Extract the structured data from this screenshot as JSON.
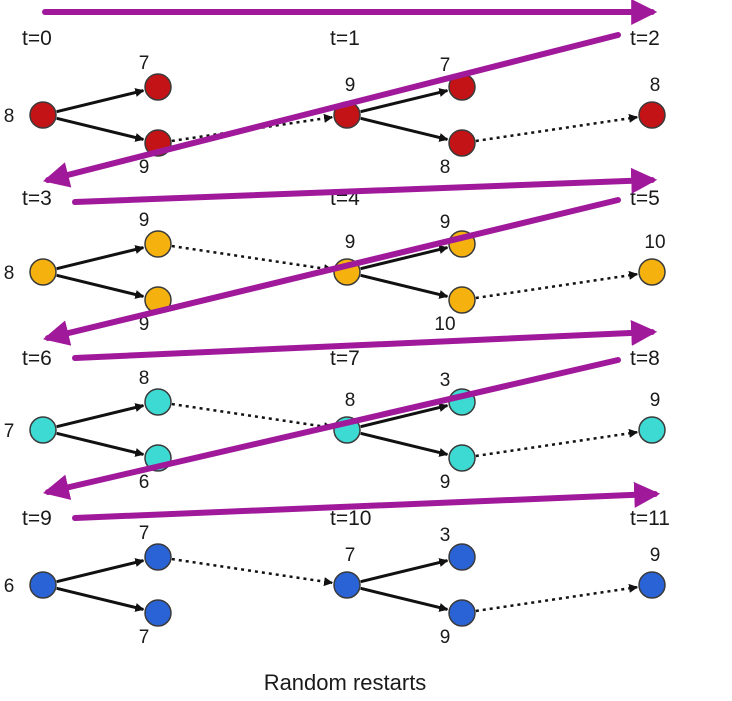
{
  "caption": "Random restarts",
  "colors": {
    "arrow": "#a0199b",
    "edge": "#111111",
    "node_stroke": "#3a3a3a"
  },
  "rows": [
    {
      "color": "#c31317",
      "times": [
        "t=0",
        "t=1",
        "t=2"
      ],
      "start": "8",
      "branch1": [
        "7",
        "9"
      ],
      "mid": "9",
      "branch2": [
        "7",
        "8"
      ],
      "end": "8"
    },
    {
      "color": "#f5b20f",
      "times": [
        "t=3",
        "t=4",
        "t=5"
      ],
      "start": "8",
      "branch1": [
        "9",
        "9"
      ],
      "mid": "9",
      "branch2": [
        "9",
        "10"
      ],
      "end": "10"
    },
    {
      "color": "#3ddad4",
      "times": [
        "t=6",
        "t=7",
        "t=8"
      ],
      "start": "7",
      "branch1": [
        "8",
        "6"
      ],
      "mid": "8",
      "branch2": [
        "3",
        "9"
      ],
      "end": "9"
    },
    {
      "color": "#2a63d6",
      "times": [
        "t=9",
        "t=10",
        "t=11"
      ],
      "start": "6",
      "branch1": [
        "7",
        "7"
      ],
      "mid": "7",
      "branch2": [
        "3",
        "9"
      ],
      "end": "9"
    }
  ]
}
